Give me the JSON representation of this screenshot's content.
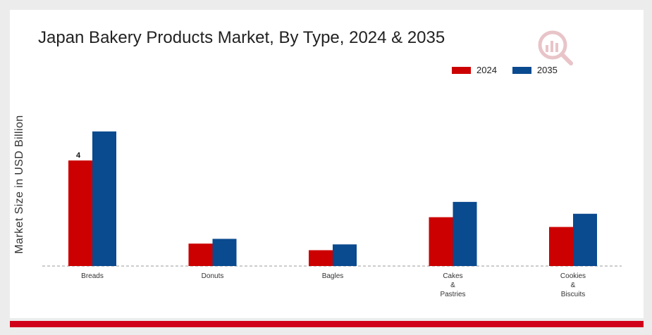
{
  "colors": {
    "series_2024": "#cc0000",
    "series_2035": "#0a4a8f",
    "accent_bar": "#d0021b"
  },
  "logo": {
    "icon": "market-research-logo-icon"
  },
  "chart_data": {
    "type": "bar",
    "title": "Japan Bakery Products Market, By Type, 2024 & 2035",
    "ylabel": "Market Size in USD Billion",
    "xlabel": "",
    "categories": [
      "Breads",
      "Donuts",
      "Bagles",
      "Cakes\n&\nPastries",
      "Cookies\n&\nBiscuits"
    ],
    "series": [
      {
        "name": "2024",
        "values": [
          4.0,
          0.85,
          0.6,
          1.85,
          1.48
        ]
      },
      {
        "name": "2035",
        "values": [
          5.1,
          1.03,
          0.82,
          2.43,
          1.98
        ]
      }
    ],
    "data_labels": [
      {
        "series": "2024",
        "category_index": 0,
        "text": "4"
      }
    ],
    "ylim": [
      0,
      7.2
    ],
    "grid": false,
    "baseline": "dashed",
    "legend_position": "top-right"
  }
}
